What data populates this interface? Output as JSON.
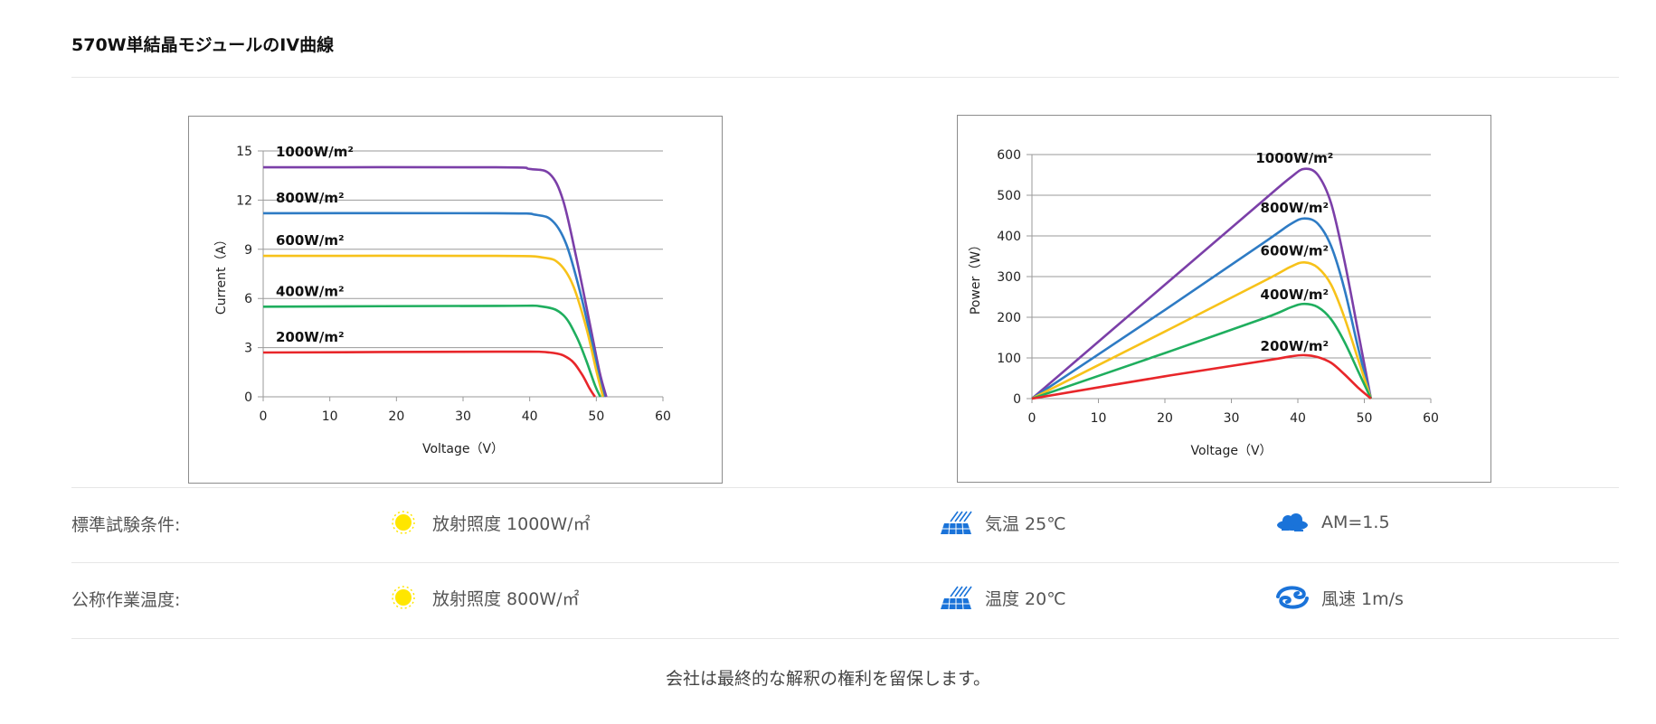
{
  "page": {
    "title": "570W単結晶モジュールのIV曲線",
    "footer_note": "会社は最終的な解釈の権利を留保します。"
  },
  "conditions": [
    {
      "label": "標準試験条件:",
      "items": [
        {
          "icon": "sun-icon",
          "text": "放射照度 1000W/㎡"
        },
        {
          "icon": "solar-panel-icon",
          "text": "気温 25℃"
        },
        {
          "icon": "cloud-icon",
          "text": "AM=1.5"
        }
      ]
    },
    {
      "label": "公称作業温度:",
      "items": [
        {
          "icon": "sun-icon",
          "text": "放射照度 800W/㎡"
        },
        {
          "icon": "solar-panel-icon",
          "text": "温度 20℃"
        },
        {
          "icon": "wind-icon",
          "text": "風速 1m/s"
        }
      ]
    }
  ],
  "colors": {
    "purple": "#7b3fa8",
    "blue": "#2e7bc4",
    "yellow": "#f7c21a",
    "green": "#1fae5e",
    "red": "#e8262a",
    "sun": "#ffe600",
    "icon_blue": "#1a73d9"
  },
  "chart_data": [
    {
      "type": "line",
      "title": "",
      "xlabel": "Voltage（V）",
      "ylabel": "Current（A）",
      "xlim": [
        0,
        60
      ],
      "ylim": [
        0,
        15
      ],
      "xticks": [
        0,
        10,
        20,
        30,
        40,
        50,
        60
      ],
      "yticks": [
        0,
        3,
        6,
        9,
        12,
        15
      ],
      "grid": "horizontal",
      "series": [
        {
          "name": "1000W/m²",
          "color": "#7b3fa8",
          "x": [
            0,
            35,
            40,
            43,
            45,
            47,
            49,
            50.5,
            51.5
          ],
          "y": [
            14.0,
            14.0,
            13.9,
            13.6,
            12.0,
            8.5,
            4.5,
            1.5,
            0
          ]
        },
        {
          "name": "800W/m²",
          "color": "#2e7bc4",
          "x": [
            0,
            35,
            41,
            43.5,
            45.5,
            47.5,
            49.5,
            50.5,
            51.2
          ],
          "y": [
            11.2,
            11.2,
            11.1,
            10.7,
            9.3,
            6.5,
            3.0,
            1.0,
            0
          ]
        },
        {
          "name": "600W/m²",
          "color": "#f7c21a",
          "x": [
            0,
            35,
            42,
            44.5,
            46.5,
            48.5,
            50,
            51
          ],
          "y": [
            8.6,
            8.6,
            8.5,
            8.1,
            6.8,
            4.2,
            1.6,
            0
          ]
        },
        {
          "name": "400W/m²",
          "color": "#1fae5e",
          "x": [
            0,
            35,
            42,
            45,
            47,
            48.5,
            49.8,
            50.6
          ],
          "y": [
            5.5,
            5.55,
            5.5,
            5.0,
            3.7,
            2.2,
            0.7,
            0
          ]
        },
        {
          "name": "200W/m²",
          "color": "#e8262a",
          "x": [
            0,
            35,
            43,
            46,
            47.8,
            49,
            49.8
          ],
          "y": [
            2.7,
            2.75,
            2.7,
            2.3,
            1.4,
            0.5,
            0
          ]
        }
      ]
    },
    {
      "type": "line",
      "title": "",
      "xlabel": "Voltage（V）",
      "ylabel": "Power（W）",
      "xlim": [
        0,
        60
      ],
      "ylim": [
        0,
        600
      ],
      "xticks": [
        0,
        10,
        20,
        30,
        40,
        50,
        60
      ],
      "yticks": [
        0,
        100,
        200,
        300,
        400,
        500,
        600
      ],
      "grid": "horizontal",
      "series": [
        {
          "name": "1000W/m²",
          "color": "#7b3fa8",
          "x": [
            0,
            20,
            35,
            39,
            41,
            43,
            45,
            47,
            49,
            51
          ],
          "y": [
            0,
            280,
            490,
            545,
            565,
            550,
            480,
            340,
            170,
            0
          ]
        },
        {
          "name": "800W/m²",
          "color": "#2e7bc4",
          "x": [
            0,
            20,
            35,
            39,
            41,
            43,
            45,
            47,
            49,
            51
          ],
          "y": [
            0,
            218,
            385,
            430,
            443,
            430,
            375,
            270,
            130,
            0
          ]
        },
        {
          "name": "600W/m²",
          "color": "#f7c21a",
          "x": [
            0,
            20,
            35,
            39,
            41,
            43,
            45,
            47,
            49,
            51
          ],
          "y": [
            0,
            165,
            290,
            325,
            335,
            322,
            280,
            200,
            100,
            0
          ]
        },
        {
          "name": "400W/m²",
          "color": "#1fae5e",
          "x": [
            0,
            20,
            35,
            39,
            41,
            43,
            45,
            47,
            49,
            51
          ],
          "y": [
            0,
            112,
            198,
            225,
            233,
            225,
            195,
            140,
            70,
            0
          ]
        },
        {
          "name": "200W/m²",
          "color": "#e8262a",
          "x": [
            0,
            20,
            35,
            39,
            41,
            43,
            45,
            47,
            49,
            51
          ],
          "y": [
            0,
            55,
            93,
            104,
            107,
            102,
            88,
            60,
            28,
            0
          ]
        }
      ]
    }
  ]
}
